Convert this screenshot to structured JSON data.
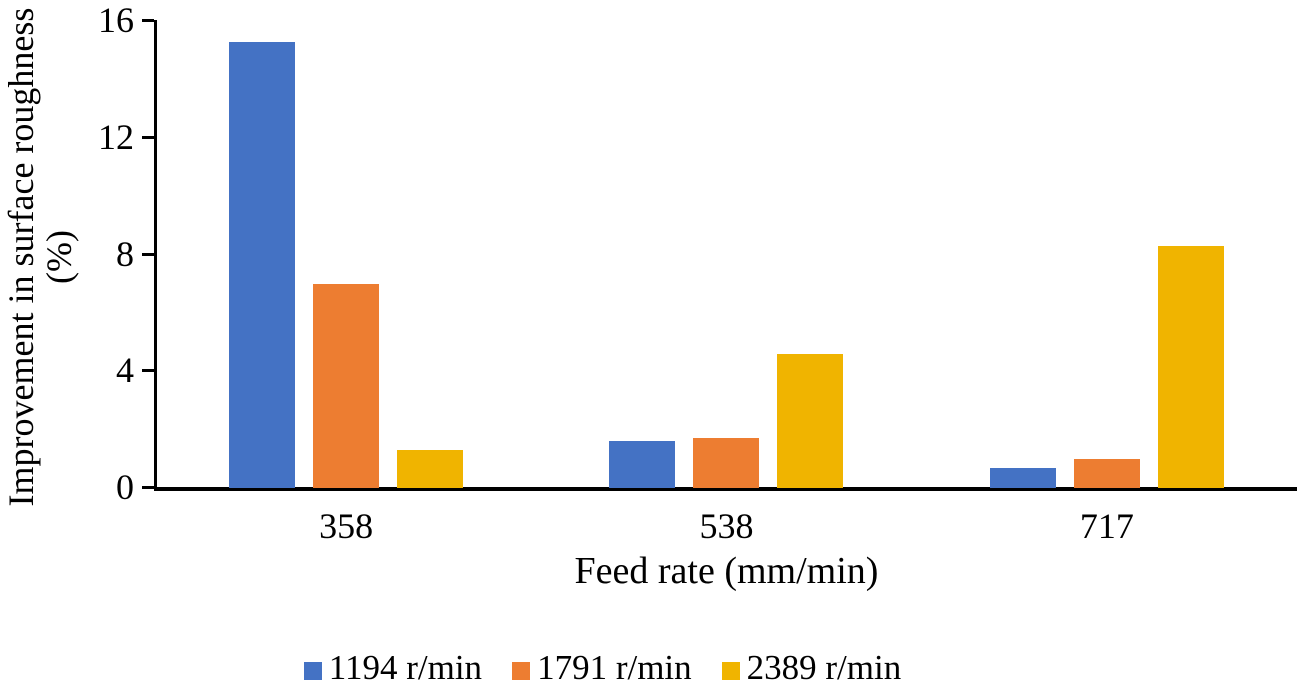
{
  "chart_data": {
    "type": "bar",
    "title": "",
    "categories": [
      "358",
      "538",
      "717"
    ],
    "series": [
      {
        "name": "1194 r/min",
        "color": "#4472C4",
        "values": [
          15.3,
          1.6,
          0.7
        ]
      },
      {
        "name": "1791 r/min",
        "color": "#ED7D31",
        "values": [
          7.0,
          1.7,
          1.0
        ]
      },
      {
        "name": "2389 r/min",
        "color": "#F0B400",
        "values": [
          1.3,
          4.6,
          8.3
        ]
      }
    ],
    "xlabel": "Feed rate (mm/min)",
    "ylabel_line1": "Improvement in surface roughness",
    "ylabel_line2": "(%)",
    "ylim": [
      0,
      16
    ],
    "yticks": [
      0,
      4,
      8,
      12,
      16
    ],
    "grid": false,
    "legend_position": "bottom",
    "axis_color": "#000000",
    "background_color": "#ffffff"
  }
}
